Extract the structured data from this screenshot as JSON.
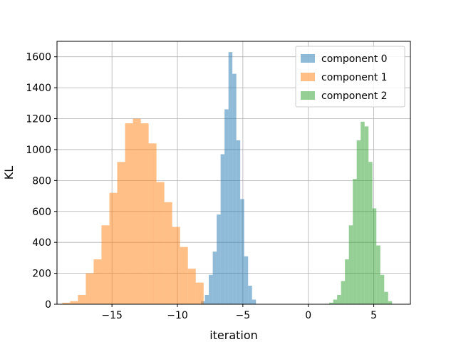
{
  "chart_data": {
    "type": "histogram",
    "title": "",
    "xlabel": "iteration",
    "ylabel": "KL",
    "xlim": [
      -19.2,
      7.8
    ],
    "ylim": [
      0,
      1700
    ],
    "xticks": [
      -15,
      -10,
      -5,
      0,
      5
    ],
    "xtick_labels": [
      "−15",
      "−10",
      "−5",
      "0",
      "5"
    ],
    "yticks": [
      0,
      200,
      400,
      600,
      800,
      1000,
      1200,
      1400,
      1600
    ],
    "grid": true,
    "legend_position": "top-right",
    "series": [
      {
        "name": "component 0",
        "color": "#1f77b4",
        "bin_width": 0.3,
        "bins": [
          {
            "x0": -8.2,
            "count": 20
          },
          {
            "x0": -7.9,
            "count": 60
          },
          {
            "x0": -7.6,
            "count": 190
          },
          {
            "x0": -7.3,
            "count": 340
          },
          {
            "x0": -7.0,
            "count": 580
          },
          {
            "x0": -6.7,
            "count": 970
          },
          {
            "x0": -6.4,
            "count": 1260
          },
          {
            "x0": -6.1,
            "count": 1630
          },
          {
            "x0": -5.8,
            "count": 1490
          },
          {
            "x0": -5.5,
            "count": 1060
          },
          {
            "x0": -5.2,
            "count": 680
          },
          {
            "x0": -4.9,
            "count": 310
          },
          {
            "x0": -4.6,
            "count": 120
          },
          {
            "x0": -4.3,
            "count": 30
          }
        ]
      },
      {
        "name": "component 1",
        "color": "#ff7f0e",
        "bin_width": 0.6,
        "bins": [
          {
            "x0": -18.8,
            "count": 10
          },
          {
            "x0": -18.2,
            "count": 20
          },
          {
            "x0": -17.6,
            "count": 60
          },
          {
            "x0": -17.0,
            "count": 200
          },
          {
            "x0": -16.4,
            "count": 290
          },
          {
            "x0": -15.8,
            "count": 510
          },
          {
            "x0": -15.2,
            "count": 720
          },
          {
            "x0": -14.6,
            "count": 920
          },
          {
            "x0": -14.0,
            "count": 1170
          },
          {
            "x0": -13.4,
            "count": 1200
          },
          {
            "x0": -12.8,
            "count": 1170
          },
          {
            "x0": -12.2,
            "count": 1040
          },
          {
            "x0": -11.6,
            "count": 790
          },
          {
            "x0": -11.0,
            "count": 660
          },
          {
            "x0": -10.4,
            "count": 500
          },
          {
            "x0": -9.8,
            "count": 370
          },
          {
            "x0": -9.2,
            "count": 230
          },
          {
            "x0": -8.6,
            "count": 140
          }
        ]
      },
      {
        "name": "component 2",
        "color": "#2ca02c",
        "bin_width": 0.3,
        "bins": [
          {
            "x0": 1.6,
            "count": 10
          },
          {
            "x0": 1.9,
            "count": 30
          },
          {
            "x0": 2.2,
            "count": 60
          },
          {
            "x0": 2.5,
            "count": 150
          },
          {
            "x0": 2.8,
            "count": 290
          },
          {
            "x0": 3.1,
            "count": 510
          },
          {
            "x0": 3.4,
            "count": 810
          },
          {
            "x0": 3.7,
            "count": 1060
          },
          {
            "x0": 4.0,
            "count": 1180
          },
          {
            "x0": 4.3,
            "count": 1150
          },
          {
            "x0": 4.6,
            "count": 920
          },
          {
            "x0": 4.9,
            "count": 620
          },
          {
            "x0": 5.2,
            "count": 380
          },
          {
            "x0": 5.5,
            "count": 190
          },
          {
            "x0": 5.8,
            "count": 80
          },
          {
            "x0": 6.1,
            "count": 20
          }
        ]
      }
    ]
  }
}
